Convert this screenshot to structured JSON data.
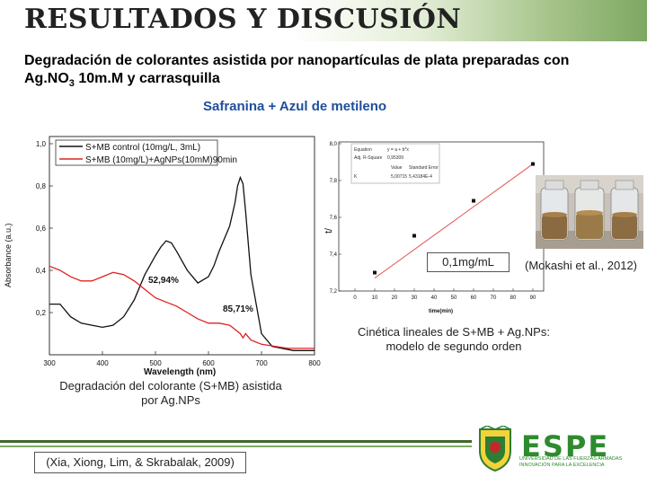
{
  "header": {
    "title": "RESULTADOS Y DISCUSIÓN"
  },
  "subtitle": {
    "line1": "Degradación de colorantes asistida por nanopartículas de plata preparadas con",
    "line2_a": "Ag.NO",
    "line2_sub": "3",
    "line2_b": " 10m.M y carrasquilla"
  },
  "section_title": "Safranina + Azul de metileno",
  "spectrum_chart": {
    "legend": [
      "S+MB control (10mg/L, 3mL)",
      "S+MB (10mg/L)+AgNPs(10mM)90min"
    ],
    "xlabel": "Wavelength (nm)",
    "ylabel": "Absorbance (a.u.)",
    "x_ticks": [
      "300",
      "400",
      "500",
      "600",
      "700",
      "800"
    ],
    "y_ticks": [
      "0,2",
      "0,4",
      "0,6",
      "0,8",
      "1,0"
    ],
    "annotation_1": "52,94%",
    "annotation_2": "85,71%",
    "series_colors": [
      "#111111",
      "#e02020"
    ]
  },
  "kinetic_chart": {
    "ylabel": "t/",
    "xlabel": "time(min)",
    "x_ticks": [
      "0",
      "10",
      "20",
      "30",
      "40",
      "50",
      "60",
      "70",
      "80",
      "90"
    ],
    "y_ticks": [
      "7,2",
      "7,4",
      "7,6",
      "7,8",
      "8,0"
    ],
    "inset_table": {
      "r1c1": "Equation",
      "r1c2": "y = a + b*x",
      "r2c1": "Adj. R-Square",
      "r2c2": "0,95309",
      "r3c2": "Value",
      "r3c3": "Standard Error",
      "r4c1": "K",
      "r4c2": "5,00715",
      "r4c3": "5,43184E-4"
    },
    "line_color": "#e05050"
  },
  "concentration_label": "0,1mg/mL",
  "citation_mokashi": "(Mokashi et al., 2012)",
  "kinetics_caption": {
    "line1": "Cinética lineales de S+MB + Ag.NPs:",
    "line2": "modelo de segundo orden"
  },
  "degradation_caption": {
    "line1": "Degradación del colorante (S+MB) asistida",
    "line2": "por Ag.NPs"
  },
  "citation_xia": "(Xia, Xiong, Lim, & Skrabalak, 2009)",
  "logo": {
    "name": "ESPE",
    "tagline": "UNIVERSIDAD DE LAS FUERZAS ARMADAS INNOVACIÓN PARA LA EXCELENCIA"
  },
  "chart_data": [
    {
      "type": "line",
      "xlabel": "Wavelength (nm)",
      "ylabel": "Absorbance (a.u.)",
      "xlim": [
        300,
        800
      ],
      "ylim": [
        0.0,
        1.0
      ],
      "series": [
        {
          "name": "S+MB control (10mg/L, 3mL)",
          "x": [
            300,
            320,
            340,
            360,
            380,
            400,
            420,
            440,
            460,
            480,
            500,
            510,
            520,
            530,
            540,
            560,
            580,
            600,
            610,
            620,
            630,
            640,
            650,
            655,
            660,
            665,
            670,
            680,
            700,
            720,
            760,
            800
          ],
          "values": [
            0.24,
            0.24,
            0.18,
            0.15,
            0.14,
            0.13,
            0.14,
            0.18,
            0.26,
            0.38,
            0.47,
            0.51,
            0.54,
            0.53,
            0.49,
            0.4,
            0.34,
            0.37,
            0.42,
            0.49,
            0.55,
            0.61,
            0.72,
            0.8,
            0.84,
            0.81,
            0.68,
            0.38,
            0.1,
            0.04,
            0.02,
            0.02
          ]
        },
        {
          "name": "S+MB (10mg/L)+AgNPs(10mM)90min",
          "x": [
            300,
            320,
            340,
            360,
            380,
            400,
            420,
            440,
            460,
            480,
            500,
            520,
            540,
            560,
            580,
            600,
            620,
            640,
            650,
            660,
            665,
            670,
            680,
            700,
            750,
            800
          ],
          "values": [
            0.42,
            0.4,
            0.37,
            0.35,
            0.35,
            0.37,
            0.39,
            0.38,
            0.35,
            0.31,
            0.27,
            0.25,
            0.23,
            0.2,
            0.17,
            0.15,
            0.15,
            0.14,
            0.12,
            0.1,
            0.08,
            0.1,
            0.07,
            0.05,
            0.03,
            0.03
          ]
        }
      ],
      "annotations": [
        "52,94%",
        "85,71%"
      ]
    },
    {
      "type": "scatter",
      "xlabel": "time(min)",
      "ylabel": "t/",
      "xlim": [
        0,
        90
      ],
      "ylim": [
        7.2,
        8.0
      ],
      "points": {
        "x": [
          10,
          30,
          60,
          90
        ],
        "y": [
          7.3,
          7.5,
          7.69,
          7.89
        ]
      },
      "fit_line": {
        "x": [
          10,
          90
        ],
        "y": [
          7.27,
          7.89
        ]
      }
    }
  ]
}
